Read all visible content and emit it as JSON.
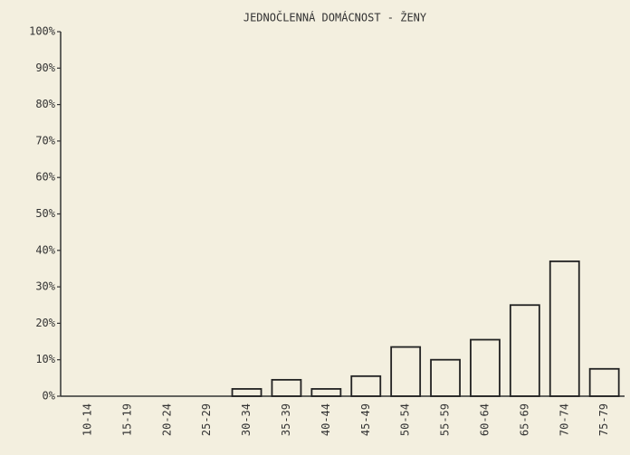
{
  "chart_data": {
    "type": "bar",
    "title": "JEDNOČLENNÁ DOMÁCNOST - ŽENY",
    "categories": [
      "10-14",
      "15-19",
      "20-24",
      "25-29",
      "30-34",
      "35-39",
      "40-44",
      "45-49",
      "50-54",
      "55-59",
      "60-64",
      "65-69",
      "70-74",
      "75-79"
    ],
    "values": [
      0,
      0,
      0,
      0,
      2,
      4.5,
      2,
      5.5,
      13.5,
      10,
      15.5,
      25,
      37,
      7.5
    ],
    "color": "#222222",
    "ylim": [
      0,
      100
    ],
    "yticks": [
      {
        "value": 0,
        "label": "0%"
      },
      {
        "value": 10,
        "label": "10%"
      },
      {
        "value": 20,
        "label": "20%"
      },
      {
        "value": 30,
        "label": "30%"
      },
      {
        "value": 40,
        "label": "40%"
      },
      {
        "value": 50,
        "label": "50%"
      },
      {
        "value": 60,
        "label": "60%"
      },
      {
        "value": 70,
        "label": "70%"
      },
      {
        "value": 80,
        "label": "80%"
      },
      {
        "value": 90,
        "label": "90%"
      },
      {
        "value": 100,
        "label": "100%"
      }
    ],
    "grid": false
  }
}
